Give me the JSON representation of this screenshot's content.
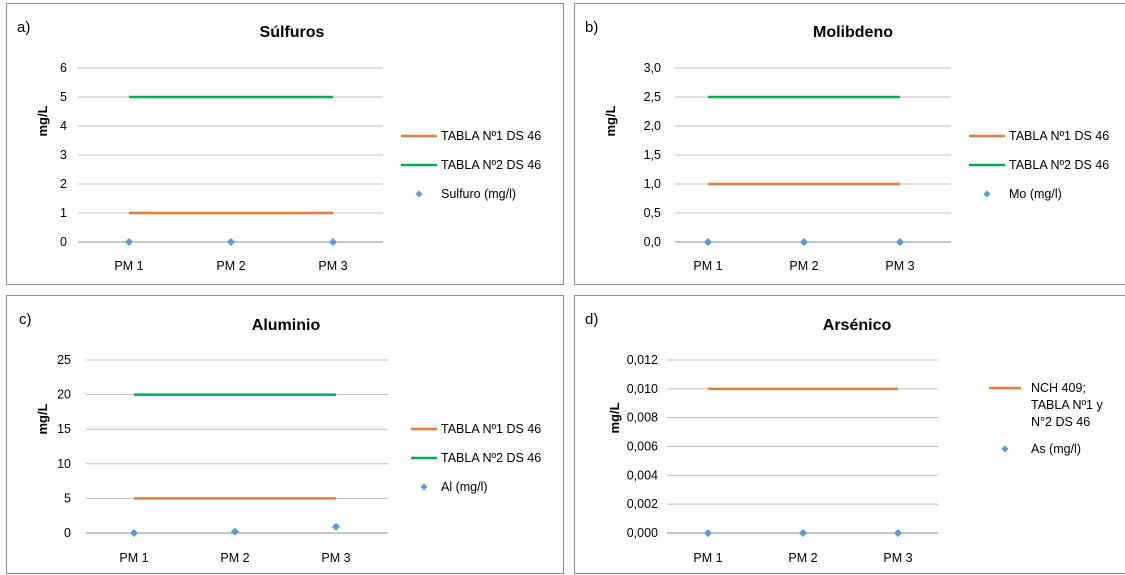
{
  "colors": {
    "orange": "#ed7d31",
    "green": "#00b050",
    "marker": "#5b9bd5",
    "grid": "#bfbfbf",
    "axis": "#8c8c8c"
  },
  "chart_data": [
    {
      "type": "line",
      "panel_label": "a)",
      "title": "Súlfuros",
      "xlabel": "",
      "ylabel": "mg/L",
      "categories": [
        "PM 1",
        "PM 2",
        "PM 3"
      ],
      "ylim": [
        0,
        6
      ],
      "yticks": [
        "0",
        "1",
        "2",
        "3",
        "4",
        "5",
        "6"
      ],
      "grid": true,
      "legend_position": "right",
      "series": [
        {
          "name": "TABLA Nº1 DS 46",
          "kind": "line",
          "color": "#ed7d31",
          "values": [
            1,
            1,
            1
          ]
        },
        {
          "name": "TABLA Nº2 DS 46",
          "kind": "line",
          "color": "#00b050",
          "values": [
            5,
            5,
            5
          ]
        },
        {
          "name": "Sulfuro (mg/l)",
          "kind": "marker",
          "color": "#5b9bd5",
          "values": [
            0,
            0,
            0
          ]
        }
      ]
    },
    {
      "type": "line",
      "panel_label": "b)",
      "title": "Molibdeno",
      "xlabel": "",
      "ylabel": "mg/L",
      "categories": [
        "PM 1",
        "PM 2",
        "PM 3"
      ],
      "ylim": [
        0,
        3
      ],
      "yticks": [
        "0,0",
        "0,5",
        "1,0",
        "1,5",
        "2,0",
        "2,5",
        "3,0"
      ],
      "grid": true,
      "legend_position": "right",
      "series": [
        {
          "name": "TABLA Nº1 DS 46",
          "kind": "line",
          "color": "#ed7d31",
          "values": [
            1,
            1,
            1
          ]
        },
        {
          "name": "TABLA Nº2 DS 46",
          "kind": "line",
          "color": "#00b050",
          "values": [
            2.5,
            2.5,
            2.5
          ]
        },
        {
          "name": "Mo  (mg/l)",
          "kind": "marker",
          "color": "#5b9bd5",
          "values": [
            0,
            0,
            0
          ]
        }
      ]
    },
    {
      "type": "line",
      "panel_label": "c)",
      "title": "Aluminio",
      "xlabel": "",
      "ylabel": "mg/L",
      "categories": [
        "PM 1",
        "PM 2",
        "PM 3"
      ],
      "ylim": [
        0,
        25
      ],
      "yticks": [
        "0",
        "5",
        "10",
        "15",
        "20",
        "25"
      ],
      "grid": true,
      "legend_position": "right",
      "series": [
        {
          "name": "TABLA Nº1 DS 46",
          "kind": "line",
          "color": "#ed7d31",
          "values": [
            5,
            5,
            5
          ]
        },
        {
          "name": "TABLA Nº2 DS 46",
          "kind": "line",
          "color": "#00b050",
          "values": [
            20,
            20,
            20
          ]
        },
        {
          "name": "Al (mg/l)",
          "kind": "marker",
          "color": "#5b9bd5",
          "values": [
            0,
            0.2,
            0.9
          ]
        }
      ]
    },
    {
      "type": "line",
      "panel_label": "d)",
      "title": "Arsénico",
      "xlabel": "",
      "ylabel": "mg/L",
      "categories": [
        "PM 1",
        "PM 2",
        "PM 3"
      ],
      "ylim": [
        0,
        0.012
      ],
      "yticks": [
        "0,000",
        "0,002",
        "0,004",
        "0,006",
        "0,008",
        "0,010",
        "0,012"
      ],
      "grid": true,
      "legend_position": "right",
      "series": [
        {
          "name": "NCH 409;\nTABLA Nº1 y\nN°2 DS 46",
          "kind": "line",
          "color": "#ed7d31",
          "values": [
            0.01,
            0.01,
            0.01
          ]
        },
        {
          "name": "As (mg/l)",
          "kind": "marker",
          "color": "#5b9bd5",
          "values": [
            0,
            0,
            0
          ]
        }
      ]
    }
  ]
}
